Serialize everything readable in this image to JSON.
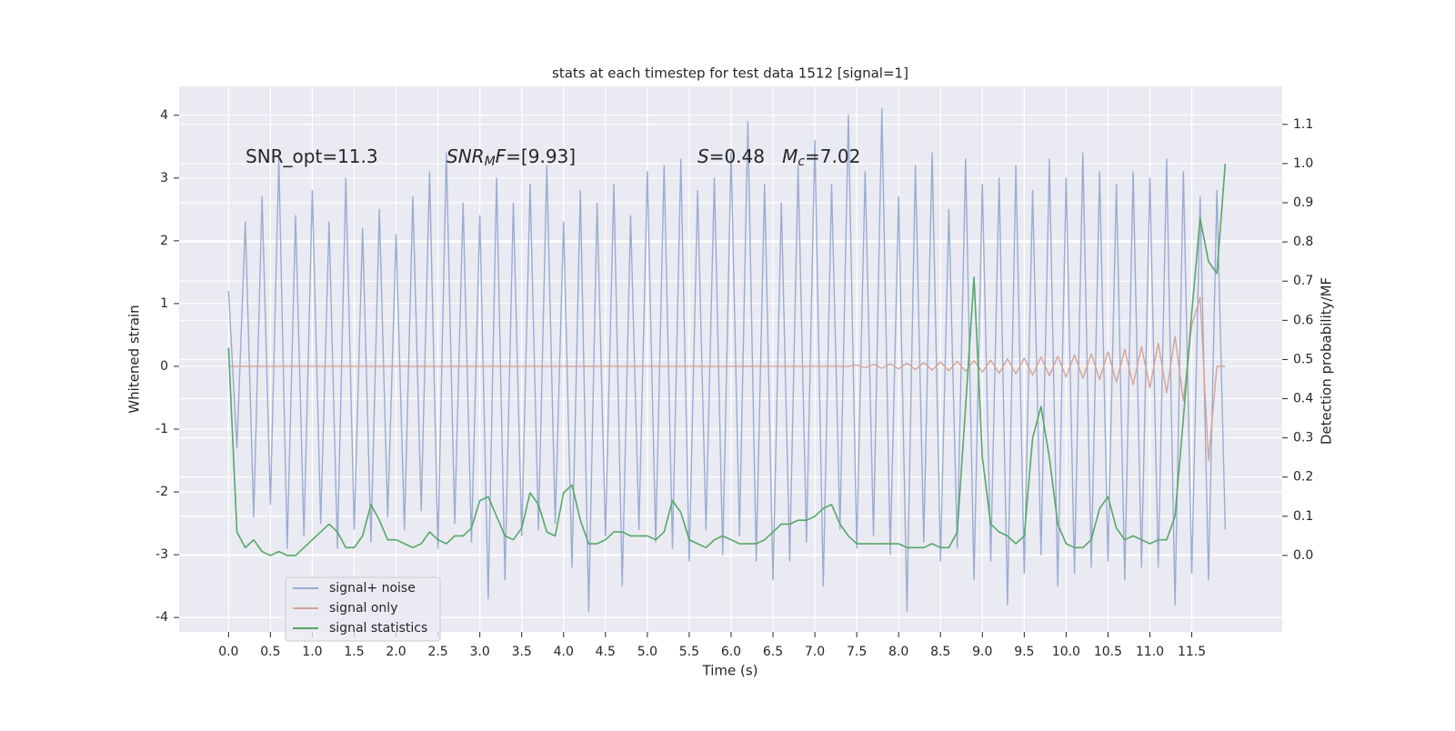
{
  "chart_data": {
    "type": "line",
    "title": "stats at each timestep for test data 1512 [signal=1]",
    "xlabel": "Time (s)",
    "ylabel": "Whitened strain",
    "y2label": "Detection probability/MF",
    "xlim": [
      -0.59,
      12.58
    ],
    "ylim": [
      -4.23,
      4.46
    ],
    "y2lim": [
      -0.195,
      1.197
    ],
    "xticks": [
      {
        "value": 0,
        "label": "0.0"
      },
      0.5,
      {
        "value": 1,
        "label": "1.0"
      },
      1.5,
      {
        "value": 2,
        "label": "2.0"
      },
      2.5,
      {
        "value": 3,
        "label": "3.0"
      },
      3.5,
      {
        "value": 4,
        "label": "4.0"
      },
      4.5,
      {
        "value": 5,
        "label": "5.0"
      },
      5.5,
      {
        "value": 6,
        "label": "6.0"
      },
      6.5,
      {
        "value": 7,
        "label": "7.0"
      },
      7.5,
      {
        "value": 8,
        "label": "8.0"
      },
      8.5,
      {
        "value": 9,
        "label": "9.0"
      },
      9.5,
      {
        "value": 10,
        "label": "10.0"
      },
      10.5,
      {
        "value": 11,
        "label": "11.0"
      },
      11.5
    ],
    "yticks": [
      -4,
      -3,
      -2,
      -1,
      0,
      1,
      2,
      3,
      4
    ],
    "y2ticks": [
      {
        "value": 0,
        "label": "0.0"
      },
      0.1,
      0.2,
      0.3,
      0.4,
      0.5,
      0.6,
      0.7,
      0.8,
      0.9,
      {
        "value": 1,
        "label": "1.0"
      },
      1.1
    ],
    "grid": true,
    "legend": "lower left",
    "annotations": [
      [
        {
          "text": "SNR_opt=11.3",
          "style": "normal"
        }
      ],
      [
        {
          "text": "SNR",
          "style": "italic"
        },
        {
          "text": "M",
          "style": "italic-sub"
        },
        {
          "text": "F",
          "style": "italic"
        },
        {
          "text": "=[9.93]",
          "style": "normal"
        }
      ],
      [
        {
          "text": "S",
          "style": "italic"
        },
        {
          "text": "=0.48   ",
          "style": "normal"
        },
        {
          "text": "M",
          "style": "italic"
        },
        {
          "text": "c",
          "style": "italic-sub"
        },
        {
          "text": "=7.02",
          "style": "normal"
        }
      ]
    ],
    "x": [
      0,
      0.1,
      0.2,
      0.3,
      0.4,
      0.5,
      0.6,
      0.7,
      0.8,
      0.9,
      1,
      1.1,
      1.2,
      1.3,
      1.4,
      1.5,
      1.6,
      1.7,
      1.8,
      1.9,
      2,
      2.1,
      2.2,
      2.3,
      2.4,
      2.5,
      2.6,
      2.7,
      2.8,
      2.9,
      3,
      3.1,
      3.2,
      3.3,
      3.4,
      3.5,
      3.6,
      3.7,
      3.8,
      3.9,
      4,
      4.1,
      4.2,
      4.3,
      4.4,
      4.5,
      4.6,
      4.7,
      4.8,
      4.9,
      5,
      5.1,
      5.2,
      5.3,
      5.4,
      5.5,
      5.6,
      5.7,
      5.8,
      5.9,
      6,
      6.1,
      6.2,
      6.3,
      6.4,
      6.5,
      6.6,
      6.7,
      6.8,
      6.9,
      7,
      7.1,
      7.2,
      7.3,
      7.4,
      7.5,
      7.6,
      7.7,
      7.8,
      7.9,
      8,
      8.1,
      8.2,
      8.3,
      8.4,
      8.5,
      8.6,
      8.7,
      8.8,
      8.9,
      9,
      9.1,
      9.2,
      9.3,
      9.4,
      9.5,
      9.6,
      9.7,
      9.8,
      9.9,
      10,
      10.1,
      10.2,
      10.3,
      10.4,
      10.5,
      10.6,
      10.7,
      10.8,
      10.9,
      11,
      11.1,
      11.2,
      11.3,
      11.4,
      11.5,
      11.6,
      11.7,
      11.8,
      11.9
    ],
    "series": [
      {
        "name": "signal+ noise",
        "color": "#9aacd1",
        "axis": "y",
        "values": [
          1.2,
          -1.3,
          2.3,
          -2.4,
          2.7,
          -2.2,
          3.3,
          -2.9,
          2.4,
          -2.7,
          2.8,
          -2.5,
          2.3,
          -2.9,
          3.0,
          -2.6,
          2.2,
          -2.8,
          2.5,
          -2.4,
          2.1,
          -2.6,
          2.7,
          -2.3,
          3.1,
          -2.9,
          3.4,
          -2.5,
          2.6,
          -2.8,
          2.4,
          -3.7,
          3.0,
          -3.4,
          2.6,
          -2.7,
          2.9,
          -2.6,
          3.2,
          -2.5,
          2.3,
          -3.2,
          2.8,
          -3.9,
          2.6,
          -2.7,
          2.9,
          -3.5,
          2.4,
          -2.6,
          3.1,
          -2.8,
          3.2,
          -2.9,
          3.3,
          -3.1,
          2.8,
          -2.6,
          3.0,
          -3.0,
          3.4,
          -2.7,
          3.9,
          -3.1,
          2.9,
          -3.4,
          2.6,
          -3.1,
          3.2,
          -2.8,
          3.6,
          -3.5,
          2.9,
          -2.6,
          4.0,
          -2.9,
          3.1,
          -2.7,
          4.1,
          -3.0,
          2.7,
          -3.9,
          3.2,
          -2.8,
          3.4,
          -3.1,
          2.5,
          -2.9,
          3.3,
          -3.4,
          2.9,
          -3.1,
          3.0,
          -3.8,
          3.2,
          -3.3,
          2.8,
          -3.0,
          3.3,
          -3.5,
          3.0,
          -3.3,
          3.4,
          -3.2,
          3.1,
          -3.1,
          2.9,
          -3.4,
          3.1,
          -3.2,
          3.0,
          -3.2,
          3.3,
          -3.8,
          3.1,
          -3.3,
          2.7,
          -3.4,
          2.8,
          -2.6
        ]
      },
      {
        "name": "signal only",
        "color": "#d4a596",
        "axis": "y",
        "values": [
          0,
          0,
          0,
          0,
          0,
          0,
          0,
          0,
          0,
          0,
          0,
          0,
          0,
          0,
          0,
          0,
          0,
          0,
          0,
          0,
          0,
          0,
          0,
          0,
          0,
          0,
          0,
          0,
          0,
          0,
          0,
          0,
          0,
          0,
          0,
          0,
          0,
          0,
          0,
          0,
          0,
          0,
          0,
          0,
          0,
          0,
          0,
          0,
          0,
          0,
          0,
          0,
          0,
          0,
          0,
          0,
          0,
          0,
          0,
          0,
          0,
          0,
          0,
          0,
          0,
          0,
          0,
          0,
          0,
          0,
          0,
          0,
          0,
          0,
          0,
          0.02,
          -0.02,
          0.03,
          -0.03,
          0.04,
          -0.04,
          0.05,
          -0.05,
          0.06,
          -0.06,
          0.07,
          -0.07,
          0.08,
          -0.08,
          0.09,
          -0.09,
          0.1,
          -0.11,
          0.12,
          -0.12,
          0.13,
          -0.14,
          0.15,
          -0.15,
          0.16,
          -0.17,
          0.18,
          -0.19,
          0.2,
          -0.21,
          0.23,
          -0.25,
          0.27,
          -0.29,
          0.31,
          -0.34,
          0.37,
          -0.42,
          0.48,
          -0.55,
          0.65,
          1.1,
          -1.5,
          0,
          0
        ]
      },
      {
        "name": "signal statistics",
        "color": "#55a868",
        "axis": "y2",
        "values": [
          0.53,
          0.06,
          0.02,
          0.04,
          0.01,
          0.0,
          0.01,
          0.0,
          0.0,
          0.02,
          0.04,
          0.06,
          0.08,
          0.06,
          0.02,
          0.02,
          0.05,
          0.13,
          0.09,
          0.04,
          0.04,
          0.03,
          0.02,
          0.03,
          0.06,
          0.04,
          0.03,
          0.05,
          0.05,
          0.07,
          0.14,
          0.15,
          0.1,
          0.05,
          0.04,
          0.07,
          0.16,
          0.13,
          0.06,
          0.05,
          0.16,
          0.18,
          0.09,
          0.03,
          0.03,
          0.04,
          0.06,
          0.06,
          0.05,
          0.05,
          0.05,
          0.04,
          0.06,
          0.14,
          0.11,
          0.04,
          0.03,
          0.02,
          0.04,
          0.05,
          0.04,
          0.03,
          0.03,
          0.03,
          0.04,
          0.06,
          0.08,
          0.08,
          0.09,
          0.09,
          0.1,
          0.12,
          0.13,
          0.08,
          0.05,
          0.03,
          0.03,
          0.03,
          0.03,
          0.03,
          0.03,
          0.02,
          0.02,
          0.02,
          0.03,
          0.02,
          0.02,
          0.06,
          0.38,
          0.71,
          0.25,
          0.08,
          0.06,
          0.05,
          0.03,
          0.05,
          0.3,
          0.38,
          0.25,
          0.08,
          0.03,
          0.02,
          0.02,
          0.04,
          0.12,
          0.15,
          0.07,
          0.04,
          0.05,
          0.04,
          0.03,
          0.04,
          0.04,
          0.1,
          0.35,
          0.62,
          0.86,
          0.75,
          0.72,
          1.0
        ]
      }
    ]
  }
}
